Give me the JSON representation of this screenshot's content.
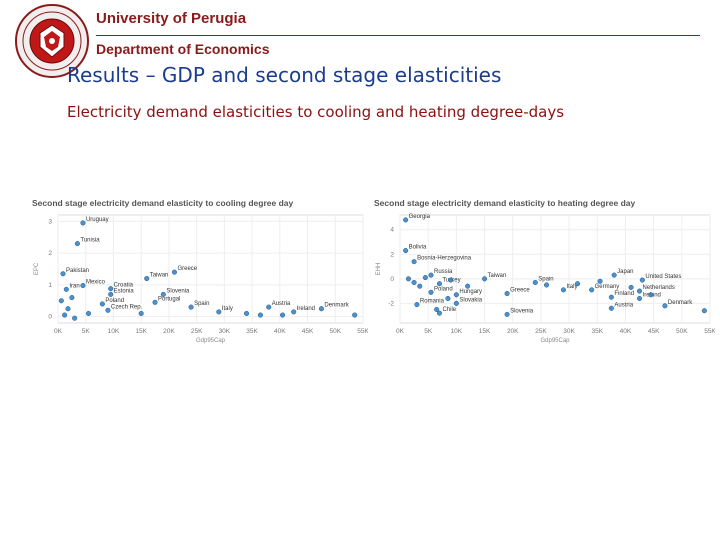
{
  "header": {
    "university": "University of Perugia",
    "department": "Department of Economics"
  },
  "slide": {
    "title": "Results – GDP and second stage elasticities",
    "subtitle": "Electricity demand elasticities to cooling and heating degree-days"
  },
  "chart_data": [
    {
      "type": "scatter",
      "title": "Second stage electricity demand elasticity to cooling degree day",
      "xlabel": "Gdp95Cap",
      "ylabel": "EPC",
      "xlim": [
        0,
        55000
      ],
      "ylim": [
        -0.2,
        3.2
      ],
      "xticks": [
        "0K",
        "5K",
        "10K",
        "15K",
        "20K",
        "25K",
        "30K",
        "35K",
        "40K",
        "45K",
        "50K",
        "55K"
      ],
      "yticks": [
        "0",
        "1",
        "2",
        "3"
      ],
      "grid": true,
      "points": [
        {
          "label": "Uruguay",
          "x": 4500,
          "y": 2.95
        },
        {
          "label": "Tunisia",
          "x": 3500,
          "y": 2.3
        },
        {
          "label": "Pakistan",
          "x": 900,
          "y": 1.35
        },
        {
          "label": "Greece",
          "x": 21000,
          "y": 1.4
        },
        {
          "label": "Taiwan",
          "x": 16000,
          "y": 1.2
        },
        {
          "label": "Mexico",
          "x": 4500,
          "y": 0.98
        },
        {
          "label": "Iran",
          "x": 1500,
          "y": 0.86
        },
        {
          "label": "Croatia",
          "x": 9500,
          "y": 0.88
        },
        {
          "label": "Estonia",
          "x": 9500,
          "y": 0.7
        },
        {
          "label": "Slovenia",
          "x": 19000,
          "y": 0.7
        },
        {
          "label": "Portugal",
          "x": 17500,
          "y": 0.45
        },
        {
          "label": "Poland",
          "x": 8000,
          "y": 0.4
        },
        {
          "label": "Czech Rep.",
          "x": 9000,
          "y": 0.2
        },
        {
          "label": "Spain",
          "x": 24000,
          "y": 0.3
        },
        {
          "label": "Italy",
          "x": 29000,
          "y": 0.15
        },
        {
          "label": "Austria",
          "x": 38000,
          "y": 0.3
        },
        {
          "label": "Ireland",
          "x": 42500,
          "y": 0.15
        },
        {
          "label": "Denmark",
          "x": 47500,
          "y": 0.25
        },
        {
          "label": "",
          "x": 1200,
          "y": 0.05
        },
        {
          "label": "",
          "x": 1800,
          "y": 0.25
        },
        {
          "label": "",
          "x": 600,
          "y": 0.5
        },
        {
          "label": "",
          "x": 2500,
          "y": 0.6
        },
        {
          "label": "",
          "x": 5500,
          "y": 0.1
        },
        {
          "label": "",
          "x": 3000,
          "y": -0.05
        },
        {
          "label": "",
          "x": 15000,
          "y": 0.1
        },
        {
          "label": "",
          "x": 34000,
          "y": 0.1
        },
        {
          "label": "",
          "x": 36500,
          "y": 0.05
        },
        {
          "label": "",
          "x": 40500,
          "y": 0.05
        },
        {
          "label": "",
          "x": 53500,
          "y": 0.05
        }
      ]
    },
    {
      "type": "scatter",
      "title": "Second stage electricity demand elasticity to heating degree day",
      "xlabel": "Gdp95Cap",
      "ylabel": "EHH",
      "xlim": [
        0,
        55000
      ],
      "ylim": [
        -3.6,
        5.2
      ],
      "xticks": [
        "0K",
        "5K",
        "10K",
        "15K",
        "20K",
        "25K",
        "30K",
        "35K",
        "40K",
        "45K",
        "50K",
        "55K"
      ],
      "yticks": [
        "4",
        "2",
        "0",
        "-2"
      ],
      "grid": true,
      "points": [
        {
          "label": "Georgia",
          "x": 1000,
          "y": 4.8
        },
        {
          "label": "Bolivia",
          "x": 1000,
          "y": 2.3
        },
        {
          "label": "Bosnia-Herzegovina",
          "x": 2500,
          "y": 1.4
        },
        {
          "label": "Russia",
          "x": 5500,
          "y": 0.3
        },
        {
          "label": "Taiwan",
          "x": 15000,
          "y": 0.0
        },
        {
          "label": "Spain",
          "x": 24000,
          "y": -0.3
        },
        {
          "label": "Japan",
          "x": 38000,
          "y": 0.3
        },
        {
          "label": "United States",
          "x": 43000,
          "y": -0.1
        },
        {
          "label": "Turkey",
          "x": 7000,
          "y": -0.4
        },
        {
          "label": "Italy",
          "x": 29000,
          "y": -0.9
        },
        {
          "label": "Germany",
          "x": 34000,
          "y": -0.9
        },
        {
          "label": "Netherlands",
          "x": 42500,
          "y": -1.0
        },
        {
          "label": "Poland",
          "x": 5500,
          "y": -1.1
        },
        {
          "label": "Hungary",
          "x": 10000,
          "y": -1.3
        },
        {
          "label": "Greece",
          "x": 19000,
          "y": -1.2
        },
        {
          "label": "Finland",
          "x": 37500,
          "y": -1.5
        },
        {
          "label": "Ireland",
          "x": 42500,
          "y": -1.6
        },
        {
          "label": "Slovakia",
          "x": 10000,
          "y": -2.0
        },
        {
          "label": "Romania",
          "x": 3000,
          "y": -2.1
        },
        {
          "label": "Austria",
          "x": 37500,
          "y": -2.4
        },
        {
          "label": "Denmark",
          "x": 47000,
          "y": -2.2
        },
        {
          "label": "Chile",
          "x": 7000,
          "y": -2.8
        },
        {
          "label": "Slovenia",
          "x": 19000,
          "y": -2.9
        },
        {
          "label": "",
          "x": 1500,
          "y": 0.0
        },
        {
          "label": "",
          "x": 2500,
          "y": -0.3
        },
        {
          "label": "",
          "x": 3500,
          "y": -0.6
        },
        {
          "label": "",
          "x": 4500,
          "y": 0.1
        },
        {
          "label": "",
          "x": 9000,
          "y": -0.1
        },
        {
          "label": "",
          "x": 12000,
          "y": -0.6
        },
        {
          "label": "",
          "x": 8500,
          "y": -1.6
        },
        {
          "label": "",
          "x": 6500,
          "y": -2.5
        },
        {
          "label": "",
          "x": 26000,
          "y": -0.5
        },
        {
          "label": "",
          "x": 31500,
          "y": -0.4
        },
        {
          "label": "",
          "x": 35500,
          "y": -0.2
        },
        {
          "label": "",
          "x": 41000,
          "y": -0.7
        },
        {
          "label": "",
          "x": 44500,
          "y": -1.3
        },
        {
          "label": "",
          "x": 54000,
          "y": -2.6
        }
      ]
    }
  ]
}
